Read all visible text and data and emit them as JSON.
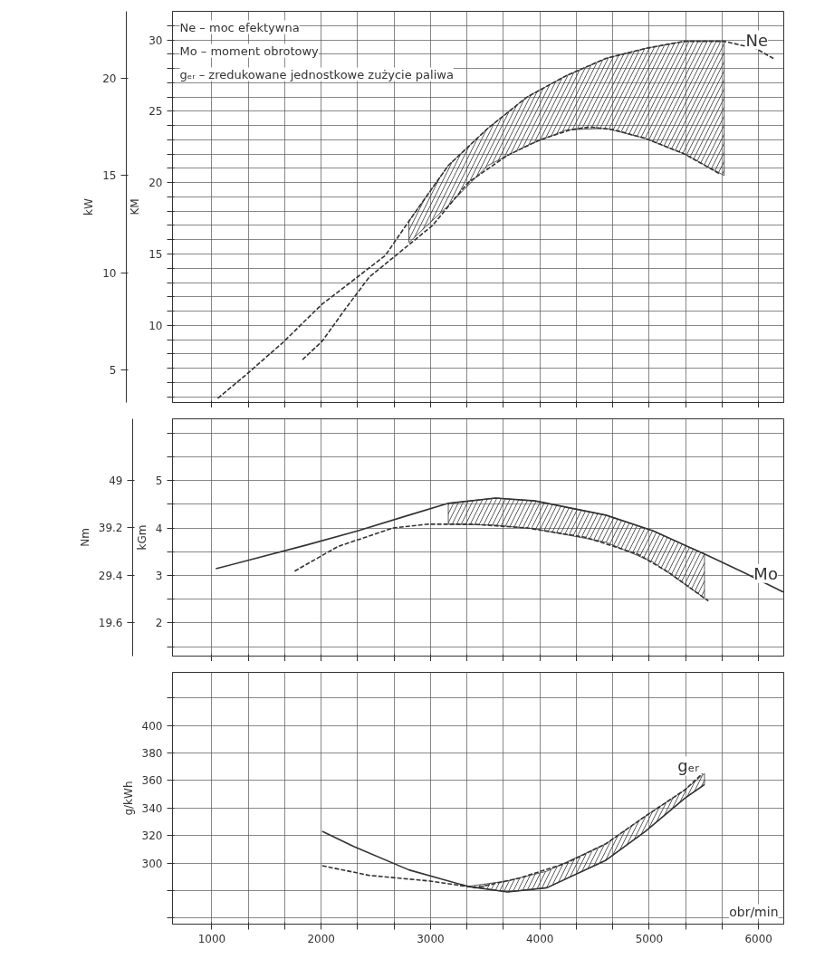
{
  "chart_data": [
    {
      "type": "line",
      "ylabel": "KM",
      "y2label": "kW",
      "tick_labels": "y",
      "xlim": [
        640,
        6230
      ],
      "ylim": [
        4.6,
        32
      ],
      "y2lim": [
        3.33,
        23.44
      ],
      "xticks": [
        1000,
        {
          "value": 1333.3,
          "label": null
        },
        {
          "value": 1666.7,
          "label": null
        },
        2000,
        {
          "value": 2333.3,
          "label": null
        },
        {
          "value": 2666.7,
          "label": null
        },
        3000,
        {
          "value": 3333.3,
          "label": null
        },
        {
          "value": 3666.7,
          "label": null
        },
        4000,
        {
          "value": 4333.3,
          "label": null
        },
        {
          "value": 4666.7,
          "label": null
        },
        5000,
        {
          "value": 5333.3,
          "label": null
        },
        {
          "value": 5666.7,
          "label": null
        },
        6000
      ],
      "yticks": [
        {
          "value": 5,
          "label": null
        },
        {
          "value": 6,
          "label": null
        },
        {
          "value": 7,
          "label": null
        },
        {
          "value": 8,
          "label": null
        },
        {
          "value": 9,
          "label": null
        },
        10,
        {
          "value": 11,
          "label": null
        },
        {
          "value": 12,
          "label": null
        },
        {
          "value": 13,
          "label": null
        },
        {
          "value": 14,
          "label": null
        },
        15,
        {
          "value": 16,
          "label": null
        },
        {
          "value": 17,
          "label": null
        },
        {
          "value": 18,
          "label": null
        },
        {
          "value": 19,
          "label": null
        },
        20,
        {
          "value": 21,
          "label": null
        },
        {
          "value": 22,
          "label": null
        },
        {
          "value": 23,
          "label": null
        },
        {
          "value": 24,
          "label": null
        },
        25,
        {
          "value": 26,
          "label": null
        },
        {
          "value": 27,
          "label": null
        },
        {
          "value": 28,
          "label": null
        },
        {
          "value": 29,
          "label": null
        },
        30,
        {
          "value": 31,
          "label": null
        }
      ],
      "y2ticks": [
        5,
        10,
        15,
        20
      ],
      "grid": true,
      "series": [
        {
          "name": "Ne",
          "color": "#333333",
          "line_style": "dashed",
          "x": [
            1054,
            1306,
            1649,
            2009,
            2333,
            2586,
            2802,
            3162,
            3523,
            3883,
            4243,
            4604,
            4964,
            5324,
            5685,
            5973,
            6135
          ],
          "values": [
            4.9,
            6.5,
            8.8,
            11.5,
            13.4,
            14.9,
            17.3,
            21.2,
            23.8,
            26.0,
            27.5,
            28.7,
            29.4,
            29.9,
            29.9,
            29.4,
            28.7
          ],
          "lower": [
            null,
            null,
            null,
            null,
            null,
            null,
            15.8,
            18.4,
            21.2,
            22.6,
            23.7,
            23.8,
            23.1,
            22.0,
            20.5,
            null,
            null
          ],
          "upper": [
            null,
            null,
            null,
            null,
            null,
            null,
            17.3,
            21.2,
            23.8,
            26.0,
            27.5,
            28.7,
            29.4,
            29.9,
            29.9,
            null,
            null
          ]
        },
        {
          "color": "#333333",
          "line_style": "dashed",
          "x": [
            1829,
            2009,
            2225,
            2441,
            2730,
            3018,
            3342,
            3700,
            4000,
            4279,
            4459,
            4676,
            4964,
            5324,
            5649
          ],
          "values": [
            7.6,
            8.9,
            11.2,
            13.4,
            15.2,
            17.0,
            20.0,
            21.9,
            23.0,
            23.7,
            23.9,
            23.7,
            23.1,
            22.0,
            20.6
          ]
        }
      ],
      "annotations": [
        "Ne – moc efektywna",
        "Mo – moment obrotowy",
        "gₑᵣ – zredukowane jednostkowe zużycie paliwa"
      ]
    },
    {
      "type": "line",
      "ylabel": "kGm",
      "y2label": "Nm",
      "tick_labels": "y",
      "xlim": [
        640,
        6230
      ],
      "ylim": [
        1.3,
        6.3
      ],
      "y2lim": [
        12.7,
        61.7
      ],
      "xticks": [
        1000,
        {
          "value": 1333.3,
          "label": null
        },
        {
          "value": 1666.7,
          "label": null
        },
        2000,
        {
          "value": 2333.3,
          "label": null
        },
        {
          "value": 2666.7,
          "label": null
        },
        3000,
        {
          "value": 3333.3,
          "label": null
        },
        {
          "value": 3666.7,
          "label": null
        },
        4000,
        {
          "value": 4333.3,
          "label": null
        },
        {
          "value": 4666.7,
          "label": null
        },
        5000,
        {
          "value": 5333.3,
          "label": null
        },
        {
          "value": 5666.7,
          "label": null
        },
        6000
      ],
      "yticks": [
        {
          "value": 1.5,
          "label": null
        },
        2,
        {
          "value": 2.5,
          "label": null
        },
        3,
        {
          "value": 3.5,
          "label": null
        },
        4,
        {
          "value": 4.5,
          "label": null
        },
        5,
        {
          "value": 5.5,
          "label": null
        },
        {
          "value": 6,
          "label": null
        }
      ],
      "y2ticks": [
        19.6,
        29.4,
        39.2,
        49
      ],
      "grid": true,
      "series": [
        {
          "name": "Mo",
          "color": "#333333",
          "line_style": "solid",
          "x": [
            1036,
            1865,
            2333,
            2802,
            3162,
            3595,
            3955,
            4604,
            5036,
            5505,
            5865,
            6225
          ],
          "values": [
            3.14,
            3.64,
            3.94,
            4.27,
            4.52,
            4.63,
            4.57,
            4.27,
            3.94,
            3.45,
            3.06,
            2.65
          ],
          "lower": [
            null,
            null,
            null,
            null,
            4.08,
            4.06,
            3.98,
            3.7,
            3.28,
            2.52,
            null,
            null
          ],
          "upper": [
            null,
            null,
            null,
            null,
            4.52,
            4.63,
            4.57,
            4.27,
            3.94,
            3.45,
            null,
            null
          ]
        },
        {
          "color": "#333333",
          "line_style": "dashed",
          "x": [
            1757,
            2153,
            2658,
            2982,
            3378,
            3883,
            4423,
            4892,
            5180,
            5541
          ],
          "values": [
            3.09,
            3.61,
            4.0,
            4.08,
            4.08,
            4.0,
            3.8,
            3.45,
            3.06,
            2.46
          ]
        }
      ]
    },
    {
      "type": "line",
      "xlabel": "obr/min",
      "ylabel": "g/kWh",
      "xlim": [
        640,
        6230
      ],
      "ylim": [
        255.6,
        438.5
      ],
      "xticks": [
        1000,
        {
          "value": 1333.3,
          "label": null
        },
        {
          "value": 1666.7,
          "label": null
        },
        2000,
        {
          "value": 2333.3,
          "label": null
        },
        {
          "value": 2666.7,
          "label": null
        },
        3000,
        {
          "value": 3333.3,
          "label": null
        },
        {
          "value": 3666.7,
          "label": null
        },
        4000,
        {
          "value": 4333.3,
          "label": null
        },
        {
          "value": 4666.7,
          "label": null
        },
        5000,
        {
          "value": 5333.3,
          "label": null
        },
        {
          "value": 5666.7,
          "label": null
        },
        6000
      ],
      "yticks": [
        {
          "value": 260,
          "label": null
        },
        {
          "value": 280,
          "label": null
        },
        300,
        320,
        340,
        360,
        380,
        400,
        {
          "value": 420,
          "label": null
        }
      ],
      "grid": true,
      "series": [
        {
          "name": "gₑᵣ",
          "color": "#333333",
          "line_style": "solid",
          "x": [
            2009,
            2297,
            2802,
            3342,
            3703,
            4063,
            4604,
            4964,
            5324,
            5505
          ],
          "values": [
            323,
            312,
            295,
            283,
            279,
            282,
            302,
            323,
            347,
            357
          ],
          "lower": [
            null,
            null,
            null,
            283,
            279,
            282,
            302,
            323,
            347,
            357
          ],
          "upper": [
            null,
            null,
            null,
            283,
            287,
            294,
            314,
            334,
            353,
            365
          ]
        },
        {
          "color": "#333333",
          "line_style": "dashed",
          "x": [
            2009,
            2441,
            2982,
            3414,
            3811,
            4243,
            4604,
            4964,
            5324,
            5486
          ],
          "values": [
            298,
            291,
            287,
            282,
            289,
            300,
            314,
            334,
            353,
            365
          ]
        }
      ]
    }
  ]
}
